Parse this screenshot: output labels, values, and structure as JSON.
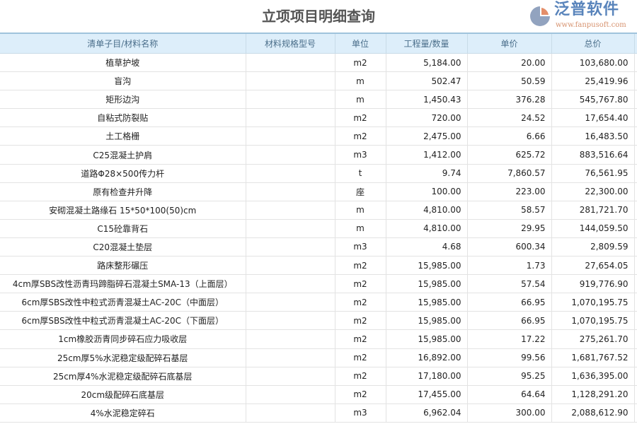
{
  "title": "立项项目明细查询",
  "columns": [
    "清单子目/材料名称",
    "材料规格型号",
    "单位",
    "工程量/数量",
    "单价",
    "总价"
  ],
  "rows": [
    [
      "植草护坡",
      "",
      "m2",
      "5,184.00",
      "20.00",
      "103,680.00"
    ],
    [
      "盲沟",
      "",
      "m",
      "502.47",
      "50.59",
      "25,419.96"
    ],
    [
      "矩形边沟",
      "",
      "m",
      "1,450.43",
      "376.28",
      "545,767.80"
    ],
    [
      "自粘式防裂贴",
      "",
      "m2",
      "720.00",
      "24.52",
      "17,654.40"
    ],
    [
      "土工格栅",
      "",
      "m2",
      "2,475.00",
      "6.66",
      "16,483.50"
    ],
    [
      "C25混凝土护肩",
      "",
      "m3",
      "1,412.00",
      "625.72",
      "883,516.64"
    ],
    [
      "道路Φ28×500传力杆",
      "",
      "t",
      "9.74",
      "7,860.57",
      "76,561.95"
    ],
    [
      "原有检查井升降",
      "",
      "座",
      "100.00",
      "223.00",
      "22,300.00"
    ],
    [
      "安砌混凝土路缘石 15*50*100(50)cm",
      "",
      "m",
      "4,810.00",
      "58.57",
      "281,721.70"
    ],
    [
      "C15砼靠背石",
      "",
      "m",
      "4,810.00",
      "29.95",
      "144,059.50"
    ],
    [
      "C20混凝土垫层",
      "",
      "m3",
      "4.68",
      "600.34",
      "2,809.59"
    ],
    [
      "路床整形碾压",
      "",
      "m2",
      "15,985.00",
      "1.73",
      "27,654.05"
    ],
    [
      "4cm厚SBS改性沥青玛蹄脂碎石混凝土SMA-13（上面层）",
      "",
      "m2",
      "15,985.00",
      "57.54",
      "919,776.90"
    ],
    [
      "6cm厚SBS改性中粒式沥青混凝土AC-20C（中面层）",
      "",
      "m2",
      "15,985.00",
      "66.95",
      "1,070,195.75"
    ],
    [
      "6cm厚SBS改性中粒式沥青混凝土AC-20C（下面层）",
      "",
      "m2",
      "15,985.00",
      "66.95",
      "1,070,195.75"
    ],
    [
      "1cm橡胶沥青同步碎石应力吸收层",
      "",
      "m2",
      "15,985.00",
      "17.22",
      "275,261.70"
    ],
    [
      "25cm厚5%水泥稳定级配碎石基层",
      "",
      "m2",
      "16,892.00",
      "99.56",
      "1,681,767.52"
    ],
    [
      "25cm厚4%水泥稳定级配碎石底基层",
      "",
      "m2",
      "17,180.00",
      "95.25",
      "1,636,395.00"
    ],
    [
      "20cm级配碎石底基层",
      "",
      "m2",
      "17,455.00",
      "64.64",
      "1,128,291.20"
    ],
    [
      "4%水泥稳定碎石",
      "",
      "m3",
      "6,962.04",
      "300.00",
      "2,088,612.90"
    ]
  ],
  "watermark": {
    "brand": "泛普软件",
    "url": "www.fanpusoft.com"
  }
}
